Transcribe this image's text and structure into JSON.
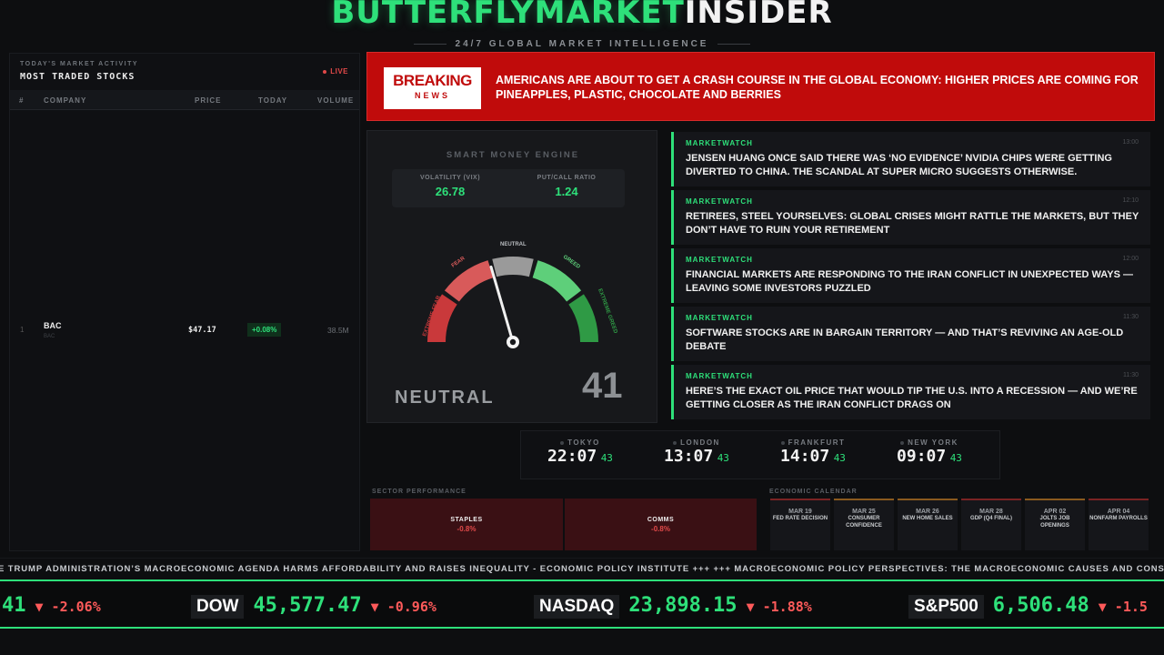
{
  "header": {
    "brand_green": "BUTTERFLYMARKET",
    "brand_white": "INSIDER",
    "tagline": "24/7 GLOBAL MARKET INTELLIGENCE"
  },
  "stocks": {
    "subtitle": "TODAY'S MARKET ACTIVITY",
    "title": "MOST TRADED STOCKS",
    "live": "LIVE",
    "columns": [
      "#",
      "COMPANY",
      "PRICE",
      "TODAY",
      "VOLUME"
    ],
    "rows": [
      {
        "num": "1",
        "company": "BAC",
        "sub": "BAC",
        "price": "$47.17",
        "today": "+0.08%",
        "volume": "38.5M"
      }
    ]
  },
  "breaking": {
    "badge_top": "BREAKING",
    "badge_bottom": "NEWS",
    "headline": "AMERICANS ARE ABOUT TO GET A CRASH COURSE IN THE GLOBAL ECONOMY: HIGHER PRICES ARE COMING FOR PINEAPPLES, PLASTIC, CHOCOLATE AND BERRIES"
  },
  "engine": {
    "title": "SMART MONEY ENGINE",
    "vix_label": "VOLATILITY (VIX)",
    "vix_value": "26.78",
    "pcr_label": "PUT/CALL RATIO",
    "pcr_value": "1.24",
    "labels": {
      "extreme_fear": "EXTREME FEAR",
      "fear": "FEAR",
      "neutral": "NEUTRAL",
      "greed": "GREED",
      "extreme_greed": "EXTREME GREED"
    },
    "sentiment": "NEUTRAL",
    "score": "41",
    "score_value": 41
  },
  "news": [
    {
      "source": "MARKETWATCH",
      "time": "13:00",
      "text": "JENSEN HUANG ONCE SAID THERE WAS ‘NO EVIDENCE’ NVIDIA CHIPS WERE GETTING DIVERTED TO CHINA. THE SCANDAL AT SUPER MICRO SUGGESTS OTHERWISE."
    },
    {
      "source": "MARKETWATCH",
      "time": "12:10",
      "text": "RETIREES, STEEL YOURSELVES: GLOBAL CRISES MIGHT RATTLE THE MARKETS, BUT THEY DON’T HAVE TO RUIN YOUR RETIREMENT"
    },
    {
      "source": "MARKETWATCH",
      "time": "12:00",
      "text": "FINANCIAL MARKETS ARE RESPONDING TO THE IRAN CONFLICT IN UNEXPECTED WAYS — LEAVING SOME INVESTORS PUZZLED"
    },
    {
      "source": "MARKETWATCH",
      "time": "11:30",
      "text": "SOFTWARE STOCKS ARE IN BARGAIN TERRITORY — AND THAT’S REVIVING AN AGE-OLD DEBATE"
    },
    {
      "source": "MARKETWATCH",
      "time": "11:30",
      "text": "HERE’S THE EXACT OIL PRICE THAT WOULD TIP THE U.S. INTO A RECESSION — AND WE’RE GETTING CLOSER AS THE IRAN CONFLICT DRAGS ON"
    }
  ],
  "clocks": [
    {
      "city": "TOKYO",
      "time": "22:07",
      "sec": "43"
    },
    {
      "city": "LONDON",
      "time": "13:07",
      "sec": "43"
    },
    {
      "city": "FRANKFURT",
      "time": "14:07",
      "sec": "43"
    },
    {
      "city": "NEW YORK",
      "time": "09:07",
      "sec": "43"
    }
  ],
  "sectors": {
    "title": "SECTOR PERFORMANCE",
    "items": [
      {
        "name": "STAPLES",
        "value": "-0.8%"
      },
      {
        "name": "COMMS",
        "value": "-0.8%"
      }
    ]
  },
  "calendar": {
    "title": "ECONOMIC CALENDAR",
    "items": [
      {
        "date": "MAR 19",
        "event": "FED RATE DECISION"
      },
      {
        "date": "MAR 25",
        "event": "CONSUMER CONFIDENCE"
      },
      {
        "date": "MAR 26",
        "event": "NEW HOME SALES"
      },
      {
        "date": "MAR 28",
        "event": "GDP (Q4 FINAL)"
      },
      {
        "date": "APR 02",
        "event": "JOLTS JOB OPENINGS"
      },
      {
        "date": "APR 04",
        "event": "NONFARM PAYROLLS"
      }
    ]
  },
  "ticker": {
    "text": "E TRUMP ADMINISTRATION’S MACROECONOMIC AGENDA HARMS AFFORDABILITY AND RAISES INEQUALITY - ECONOMIC POLICY INSTITUTE +++ +++ MACROECONOMIC POLICY PERSPECTIVES: THE MACROECONOMIC CAUSES AND CONSEQU"
  },
  "indices": [
    {
      "name": "",
      "value": "41",
      "change": "▼ -2.06%"
    },
    {
      "name": "DOW",
      "value": "45,577.47",
      "change": "▼ -0.96%"
    },
    {
      "name": "NASDAQ",
      "value": "23,898.15",
      "change": "▼ -1.88%"
    },
    {
      "name": "S&P500",
      "value": "6,506.48",
      "change": "▼ -1.5"
    }
  ],
  "colors": {
    "accent": "#2ee07a",
    "breaking": "#c00b0b",
    "negative": "#ff5a5a"
  }
}
